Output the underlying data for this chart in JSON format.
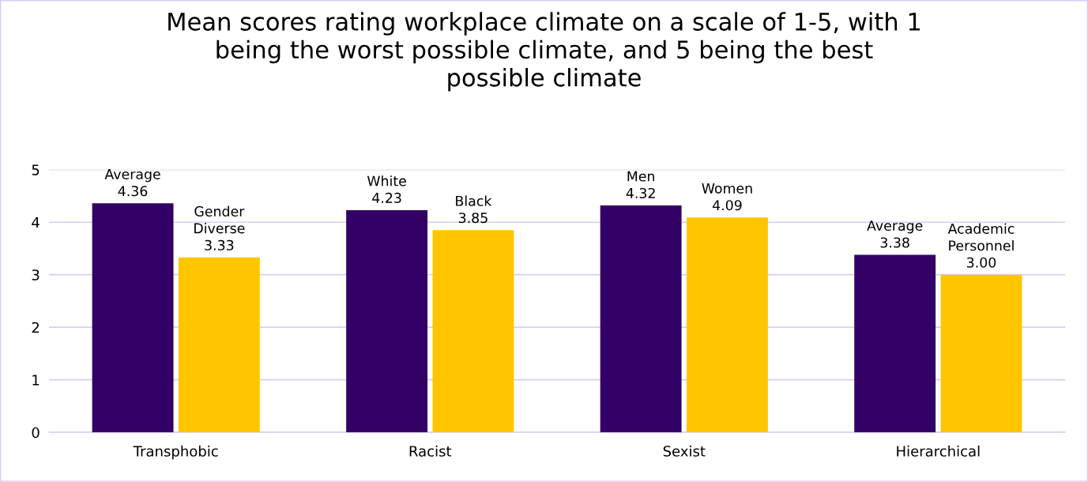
{
  "chart_data": {
    "type": "bar",
    "title": "Mean scores rating workplace climate on a scale of 1-5, with 1\nbeing the worst possible climate, and 5 being the best\npossible climate",
    "categories": [
      "Transphobic",
      "Racist",
      "Sexist",
      "Hierarchical"
    ],
    "series": [
      {
        "color": "#330066",
        "values": [
          4.36,
          4.23,
          4.32,
          3.38
        ],
        "value_labels": [
          "Average\n4.36",
          "White\n4.23",
          "Men\n4.32",
          "Average\n3.38"
        ]
      },
      {
        "color": "#ffc600",
        "values": [
          3.33,
          3.85,
          4.09,
          3.0
        ],
        "value_labels": [
          "Gender\nDiverse\n3.33",
          "Black\n3.85",
          "Women\n4.09",
          "Academic\nPersonnel\n3.00"
        ]
      }
    ],
    "ylim": [
      0,
      5
    ],
    "yticks": [
      0,
      1,
      2,
      3,
      4,
      5
    ],
    "grid": "y"
  }
}
